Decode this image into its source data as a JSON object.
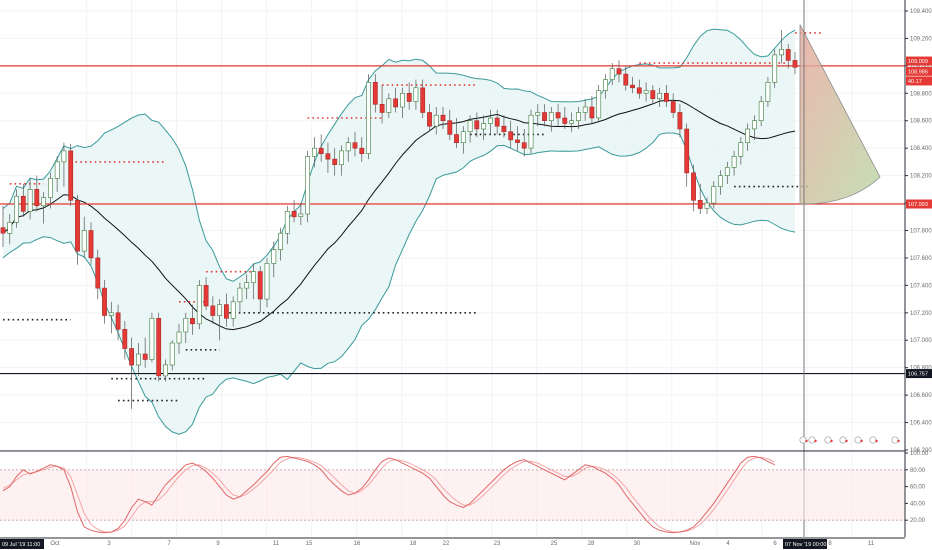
{
  "chart_data": [
    {
      "type": "candlestick",
      "title": "",
      "price_axis": {
        "ticks": [
          "109.400",
          "109.200",
          "109.000",
          "108.800",
          "108.600",
          "108.400",
          "108.200",
          "108.000",
          "107.800",
          "107.600",
          "107.400",
          "107.200",
          "107.000",
          "106.800",
          "106.600",
          "106.400",
          "106.200"
        ],
        "range": [
          106.2,
          109.48
        ]
      },
      "time_axis": {
        "labels": [
          "Oct",
          "3",
          "7",
          "9",
          "11",
          "15",
          "16",
          "18",
          "22",
          "23",
          "25",
          "28",
          "30",
          "Nov",
          "4",
          "6",
          "8",
          "11"
        ],
        "start_tag": "09 Jul '19   11:00",
        "cursor_tag": "07 Nov '19   00:00"
      },
      "candles": [
        [
          107.82,
          107.98,
          107.68,
          107.78
        ],
        [
          107.78,
          107.92,
          107.7,
          107.86
        ],
        [
          107.86,
          108.1,
          107.82,
          108.05
        ],
        [
          108.05,
          108.14,
          107.9,
          107.94
        ],
        [
          107.94,
          108.18,
          107.88,
          108.1
        ],
        [
          108.1,
          108.2,
          107.94,
          107.98
        ],
        [
          107.98,
          108.08,
          107.85,
          108.04
        ],
        [
          108.04,
          108.22,
          107.96,
          108.18
        ],
        [
          108.18,
          108.34,
          108.08,
          108.3
        ],
        [
          108.3,
          108.44,
          108.12,
          108.38
        ],
        [
          108.38,
          108.43,
          107.98,
          108.02
        ],
        [
          108.02,
          108.06,
          107.55,
          107.65
        ],
        [
          107.65,
          107.9,
          107.6,
          107.8
        ],
        [
          107.8,
          107.86,
          107.55,
          107.6
        ],
        [
          107.6,
          107.66,
          107.3,
          107.38
        ],
        [
          107.38,
          107.44,
          107.12,
          107.18
        ],
        [
          107.18,
          107.28,
          107.05,
          107.2
        ],
        [
          107.2,
          107.26,
          107.0,
          107.08
        ],
        [
          107.08,
          107.14,
          106.86,
          106.94
        ],
        [
          106.94,
          107.02,
          106.5,
          106.82
        ],
        [
          106.82,
          106.98,
          106.74,
          106.9
        ],
        [
          106.9,
          107.02,
          106.8,
          106.86
        ],
        [
          106.86,
          107.2,
          106.84,
          107.16
        ],
        [
          107.16,
          107.2,
          106.7,
          106.74
        ],
        [
          106.74,
          106.86,
          106.7,
          106.82
        ],
        [
          106.82,
          107.0,
          106.78,
          106.98
        ],
        [
          106.98,
          107.12,
          106.9,
          107.06
        ],
        [
          107.06,
          107.2,
          106.98,
          107.16
        ],
        [
          107.16,
          107.26,
          107.04,
          107.12
        ],
        [
          107.12,
          107.44,
          107.08,
          107.4
        ],
        [
          107.4,
          107.46,
          107.22,
          107.25
        ],
        [
          107.25,
          107.32,
          107.12,
          107.18
        ],
        [
          107.18,
          107.3,
          107.0,
          107.26
        ],
        [
          107.26,
          107.34,
          107.1,
          107.16
        ],
        [
          107.16,
          107.32,
          107.1,
          107.28
        ],
        [
          107.28,
          107.42,
          107.2,
          107.38
        ],
        [
          107.38,
          107.48,
          107.3,
          107.42
        ],
        [
          107.42,
          107.56,
          107.3,
          107.5
        ],
        [
          107.5,
          107.54,
          107.2,
          107.3
        ],
        [
          107.3,
          107.6,
          107.24,
          107.56
        ],
        [
          107.56,
          107.72,
          107.46,
          107.66
        ],
        [
          107.66,
          107.82,
          107.58,
          107.78
        ],
        [
          107.78,
          107.98,
          107.7,
          107.94
        ],
        [
          107.94,
          108.02,
          107.86,
          107.9
        ],
        [
          107.9,
          108.0,
          107.84,
          107.92
        ],
        [
          107.92,
          108.38,
          107.86,
          108.34
        ],
        [
          108.34,
          108.48,
          108.26,
          108.4
        ],
        [
          108.4,
          108.5,
          108.3,
          108.36
        ],
        [
          108.36,
          108.44,
          108.22,
          108.32
        ],
        [
          108.32,
          108.4,
          108.2,
          108.28
        ],
        [
          108.28,
          108.42,
          108.2,
          108.38
        ],
        [
          108.38,
          108.48,
          108.3,
          108.44
        ],
        [
          108.44,
          108.52,
          108.34,
          108.4
        ],
        [
          108.4,
          108.48,
          108.3,
          108.36
        ],
        [
          108.36,
          108.94,
          108.32,
          108.88
        ],
        [
          108.88,
          108.94,
          108.66,
          108.72
        ],
        [
          108.72,
          108.86,
          108.58,
          108.66
        ],
        [
          108.66,
          108.8,
          108.62,
          108.76
        ],
        [
          108.76,
          108.84,
          108.66,
          108.7
        ],
        [
          108.7,
          108.84,
          108.62,
          108.8
        ],
        [
          108.8,
          108.88,
          108.68,
          108.74
        ],
        [
          108.74,
          108.9,
          108.68,
          108.84
        ],
        [
          108.84,
          108.9,
          108.62,
          108.66
        ],
        [
          108.66,
          108.72,
          108.52,
          108.56
        ],
        [
          108.56,
          108.7,
          108.5,
          108.64
        ],
        [
          108.64,
          108.7,
          108.54,
          108.6
        ],
        [
          108.6,
          108.68,
          108.46,
          108.5
        ],
        [
          108.5,
          108.62,
          108.4,
          108.44
        ],
        [
          108.44,
          108.56,
          108.36,
          108.52
        ],
        [
          108.52,
          108.64,
          108.44,
          108.6
        ],
        [
          108.6,
          108.66,
          108.48,
          108.54
        ],
        [
          108.54,
          108.64,
          108.46,
          108.58
        ],
        [
          108.58,
          108.68,
          108.5,
          108.62
        ],
        [
          108.62,
          108.68,
          108.5,
          108.56
        ],
        [
          108.56,
          108.64,
          108.48,
          108.52
        ],
        [
          108.52,
          108.6,
          108.4,
          108.46
        ],
        [
          108.46,
          108.56,
          108.38,
          108.44
        ],
        [
          108.44,
          108.54,
          108.34,
          108.4
        ],
        [
          108.4,
          108.68,
          108.36,
          108.64
        ],
        [
          108.64,
          108.72,
          108.56,
          108.66
        ],
        [
          108.66,
          108.72,
          108.56,
          108.6
        ],
        [
          108.6,
          108.7,
          108.52,
          108.66
        ],
        [
          108.66,
          108.72,
          108.56,
          108.62
        ],
        [
          108.62,
          108.7,
          108.54,
          108.58
        ],
        [
          108.58,
          108.66,
          108.52,
          108.6
        ],
        [
          108.6,
          108.7,
          108.54,
          108.66
        ],
        [
          108.66,
          108.76,
          108.6,
          108.7
        ],
        [
          108.7,
          108.78,
          108.58,
          108.62
        ],
        [
          108.62,
          108.86,
          108.6,
          108.82
        ],
        [
          108.82,
          108.94,
          108.76,
          108.9
        ],
        [
          108.9,
          109.02,
          108.86,
          108.98
        ],
        [
          108.98,
          109.04,
          108.88,
          108.94
        ],
        [
          108.94,
          109.0,
          108.82,
          108.86
        ],
        [
          108.86,
          108.92,
          108.8,
          108.84
        ],
        [
          108.84,
          108.9,
          108.76,
          108.8
        ],
        [
          108.8,
          108.88,
          108.74,
          108.82
        ],
        [
          108.82,
          108.86,
          108.72,
          108.76
        ],
        [
          108.76,
          108.84,
          108.7,
          108.8
        ],
        [
          108.8,
          108.86,
          108.7,
          108.74
        ],
        [
          108.74,
          108.8,
          108.62,
          108.66
        ],
        [
          108.66,
          108.72,
          108.48,
          108.54
        ],
        [
          108.54,
          108.58,
          108.12,
          108.22
        ],
        [
          108.22,
          108.28,
          107.94,
          108.02
        ],
        [
          108.02,
          108.14,
          107.92,
          107.96
        ],
        [
          107.96,
          108.04,
          107.92,
          108.0
        ],
        [
          108.0,
          108.16,
          107.96,
          108.12
        ],
        [
          108.12,
          108.24,
          108.06,
          108.2
        ],
        [
          108.2,
          108.3,
          108.14,
          108.26
        ],
        [
          108.26,
          108.38,
          108.2,
          108.34
        ],
        [
          108.34,
          108.48,
          108.28,
          108.44
        ],
        [
          108.44,
          108.58,
          108.38,
          108.54
        ],
        [
          108.54,
          108.64,
          108.46,
          108.6
        ],
        [
          108.6,
          108.78,
          108.56,
          108.74
        ],
        [
          108.74,
          108.92,
          108.7,
          108.88
        ],
        [
          108.88,
          109.12,
          108.84,
          109.08
        ],
        [
          109.08,
          109.26,
          109.02,
          109.12
        ],
        [
          109.12,
          109.16,
          108.98,
          109.04
        ],
        [
          109.04,
          109.1,
          108.94,
          108.99
        ]
      ],
      "indicators": {
        "middle_band": "20-period moving average (black line)",
        "bands": "Bollinger Bands (teal lines, light fill)"
      },
      "horizontal_levels": {
        "red_upper": 109.0,
        "red_lower": 107.993,
        "black": 106.757
      },
      "price_tags": [
        {
          "text": "109.009",
          "color": "#e53935"
        },
        {
          "text": "108.986",
          "color": "#e53935"
        },
        {
          "text": "40.17",
          "color": "#e53935"
        },
        {
          "text": "107.993",
          "color": "#e53935"
        },
        {
          "text": "106.757",
          "color": "#131722"
        }
      ]
    },
    {
      "type": "line",
      "title": "",
      "ticks": [
        "100.00",
        "80.00",
        "60.00",
        "40.00",
        "20.00"
      ],
      "range": [
        0,
        100
      ],
      "upper_level": 80,
      "lower_level": 20,
      "series_colors": {
        "k": "#e06666",
        "d": "#f4a6a6"
      },
      "k": [
        55,
        60,
        72,
        80,
        75,
        78,
        82,
        86,
        84,
        80,
        60,
        30,
        12,
        8,
        6,
        5,
        6,
        10,
        20,
        35,
        45,
        42,
        38,
        50,
        62,
        70,
        78,
        86,
        88,
        84,
        78,
        70,
        60,
        50,
        45,
        48,
        55,
        62,
        70,
        78,
        88,
        95,
        96,
        94,
        92,
        90,
        86,
        80,
        70,
        62,
        55,
        50,
        52,
        58,
        68,
        80,
        90,
        94,
        92,
        88,
        84,
        80,
        76,
        70,
        60,
        50,
        42,
        38,
        35,
        40,
        48,
        56,
        64,
        72,
        80,
        86,
        90,
        92,
        88,
        84,
        80,
        76,
        72,
        68,
        74,
        80,
        86,
        84,
        80,
        76,
        70,
        62,
        50,
        40,
        30,
        20,
        12,
        8,
        6,
        5,
        6,
        8,
        12,
        20,
        30,
        40,
        52,
        64,
        76,
        88,
        95,
        96,
        94,
        90,
        86
      ],
      "d": [
        58,
        62,
        68,
        74,
        76,
        78,
        80,
        83,
        84,
        82,
        72,
        50,
        28,
        15,
        9,
        6,
        6,
        8,
        13,
        24,
        36,
        42,
        42,
        44,
        52,
        62,
        72,
        80,
        85,
        86,
        82,
        76,
        68,
        58,
        50,
        48,
        51,
        57,
        64,
        72,
        80,
        89,
        93,
        95,
        94,
        92,
        89,
        85,
        78,
        70,
        62,
        55,
        52,
        55,
        62,
        72,
        82,
        90,
        92,
        91,
        88,
        84,
        80,
        75,
        68,
        58,
        50,
        43,
        38,
        38,
        43,
        50,
        58,
        66,
        74,
        81,
        86,
        90,
        90,
        88,
        84,
        80,
        76,
        72,
        72,
        76,
        82,
        84,
        83,
        80,
        75,
        68,
        59,
        48,
        38,
        28,
        19,
        12,
        8,
        6,
        6,
        7,
        10,
        15,
        23,
        33,
        44,
        56,
        68,
        80,
        90,
        94,
        95,
        93,
        89
      ]
    }
  ]
}
